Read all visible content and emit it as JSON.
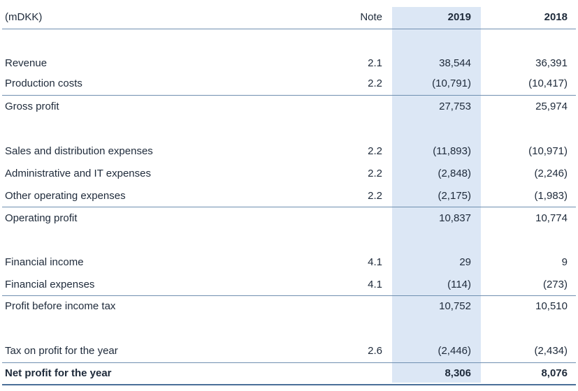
{
  "header": {
    "unit": "(mDKK)",
    "note": "Note",
    "y2019": "2019",
    "y2018": "2018"
  },
  "rows": [
    {
      "label": "Revenue",
      "note": "2.1",
      "y2019": "38,544",
      "y2018": "36,391"
    },
    {
      "label": "Production costs",
      "note": "2.2",
      "y2019": "(10,791)",
      "y2018": "(10,417)"
    },
    {
      "label": "Gross profit",
      "note": "",
      "y2019": "27,753",
      "y2018": "25,974"
    },
    {
      "label": "Sales and distribution expenses",
      "note": "2.2",
      "y2019": "(11,893)",
      "y2018": "(10,971)"
    },
    {
      "label": "Administrative and IT expenses",
      "note": "2.2",
      "y2019": "(2,848)",
      "y2018": "(2,246)"
    },
    {
      "label": "Other operating expenses",
      "note": "2.2",
      "y2019": "(2,175)",
      "y2018": "(1,983)"
    },
    {
      "label": "Operating profit",
      "note": "",
      "y2019": "10,837",
      "y2018": "10,774"
    },
    {
      "label": "Financial income",
      "note": "4.1",
      "y2019": "29",
      "y2018": "9"
    },
    {
      "label": "Financial expenses",
      "note": "4.1",
      "y2019": "(114)",
      "y2018": "(273)"
    },
    {
      "label": "Profit before income tax",
      "note": "",
      "y2019": "10,752",
      "y2018": "10,510"
    },
    {
      "label": "Tax on profit for the year",
      "note": "2.6",
      "y2019": "(2,446)",
      "y2018": "(2,434)"
    },
    {
      "label": "Net profit for the year",
      "note": "",
      "y2019": "8,306",
      "y2018": "8,076"
    }
  ]
}
